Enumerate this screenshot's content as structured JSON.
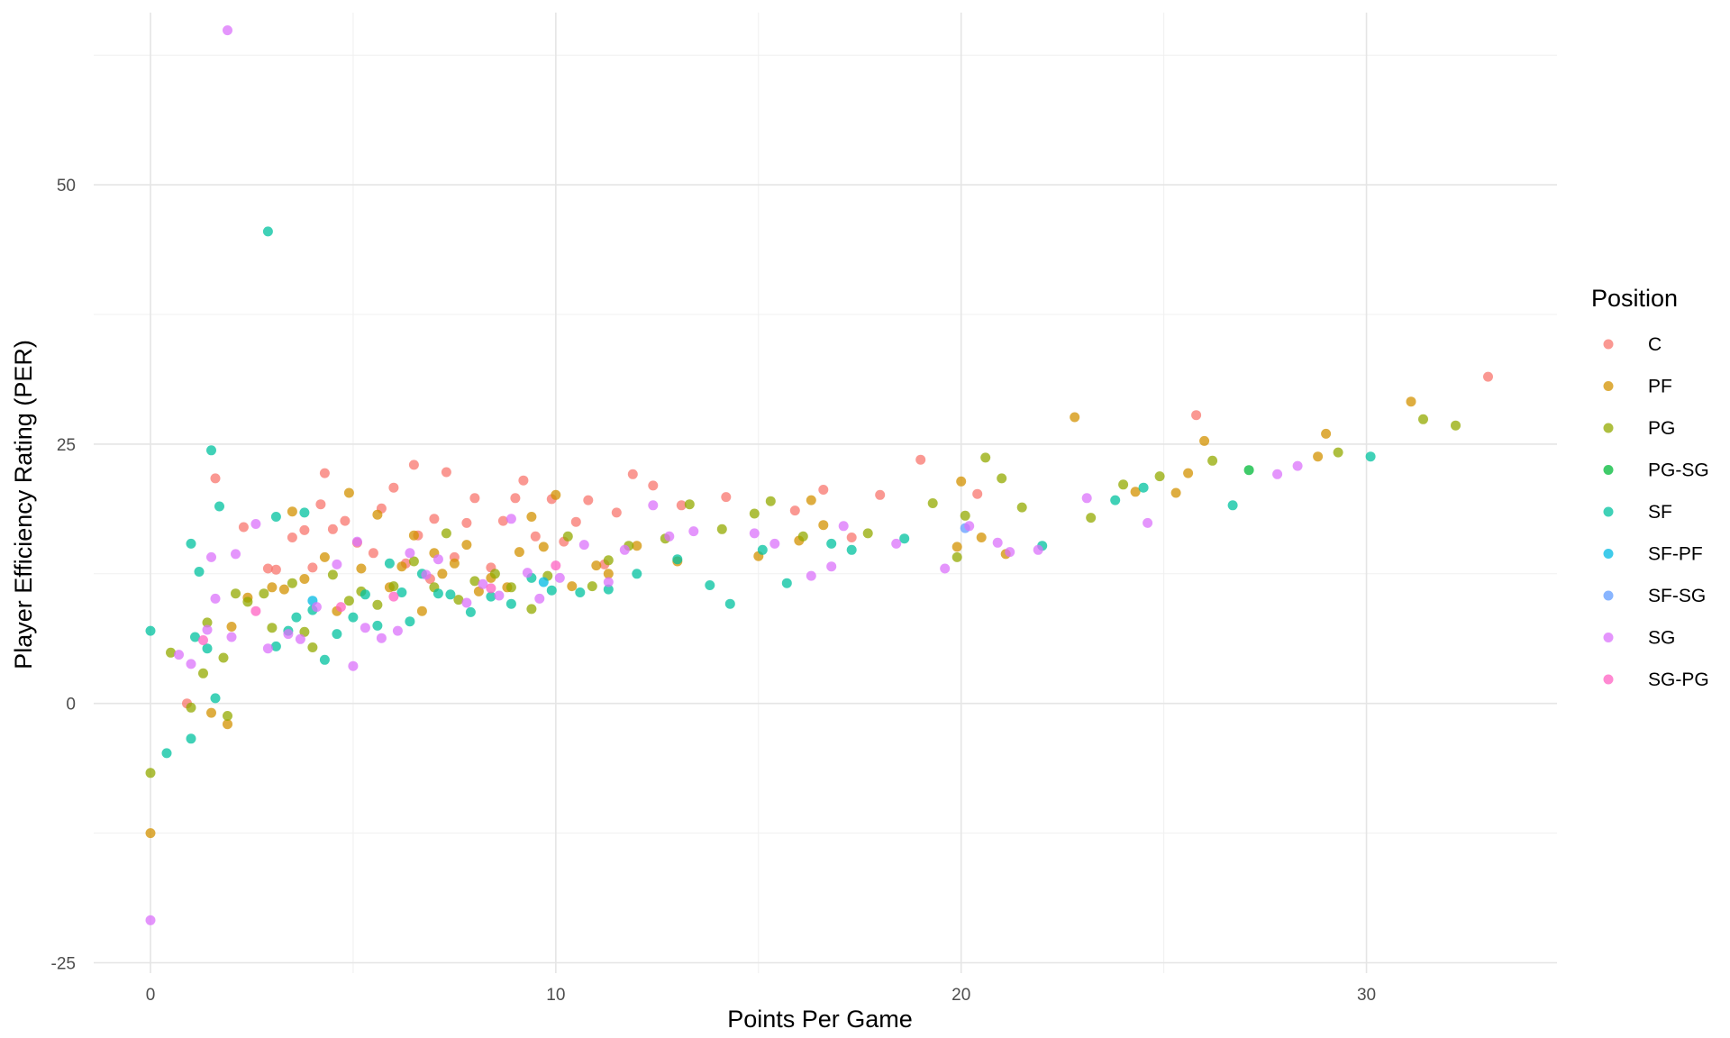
{
  "chart_data": {
    "type": "scatter",
    "xlabel": "Points Per Game",
    "ylabel": "Player Efficiency Rating (PER)",
    "xlim": [
      -1.4,
      34.7
    ],
    "ylim": [
      -26,
      66.6
    ],
    "x_ticks": [
      0,
      10,
      20,
      30
    ],
    "y_ticks": [
      -25,
      0,
      25,
      50
    ],
    "grid": true,
    "legend": {
      "title": "Position",
      "placement": "right"
    },
    "colors": {
      "C": "#F8766D",
      "PF": "#D39200",
      "PG": "#93AA00",
      "PG-SG": "#00BA38",
      "SF": "#00C19F",
      "SF-PF": "#00B9E3",
      "SF-SG": "#619CFF",
      "SG": "#DB72FB",
      "SG-PG": "#FF61C3"
    },
    "series": [
      {
        "name": "C",
        "points": [
          [
            0.9,
            0
          ],
          [
            1.6,
            21.7
          ],
          [
            2.3,
            17
          ],
          [
            2.9,
            13
          ],
          [
            3.1,
            12.9
          ],
          [
            3.5,
            16
          ],
          [
            3.8,
            16.7
          ],
          [
            4.0,
            13.1
          ],
          [
            4.2,
            19.2
          ],
          [
            4.3,
            22.2
          ],
          [
            4.5,
            16.8
          ],
          [
            4.8,
            17.6
          ],
          [
            5.1,
            15.5
          ],
          [
            5.5,
            14.5
          ],
          [
            5.7,
            18.8
          ],
          [
            6.0,
            20.8
          ],
          [
            6.3,
            13.5
          ],
          [
            6.5,
            23
          ],
          [
            6.6,
            16.2
          ],
          [
            6.9,
            12
          ],
          [
            7.0,
            17.8
          ],
          [
            7.3,
            22.3
          ],
          [
            7.5,
            14.1
          ],
          [
            7.8,
            17.4
          ],
          [
            8.0,
            19.8
          ],
          [
            8.4,
            13.1
          ],
          [
            8.7,
            17.6
          ],
          [
            9.0,
            19.8
          ],
          [
            9.2,
            21.5
          ],
          [
            9.5,
            16.1
          ],
          [
            9.9,
            19.7
          ],
          [
            10.2,
            15.6
          ],
          [
            10.5,
            17.5
          ],
          [
            10.8,
            19.6
          ],
          [
            11.2,
            13.4
          ],
          [
            11.5,
            18.4
          ],
          [
            11.9,
            22.1
          ],
          [
            12.4,
            21
          ],
          [
            13.1,
            19.1
          ],
          [
            14.2,
            19.9
          ],
          [
            15.9,
            18.6
          ],
          [
            16.6,
            20.6
          ],
          [
            17.3,
            16
          ],
          [
            18.0,
            20.1
          ],
          [
            19.0,
            23.5
          ],
          [
            20.4,
            20.2
          ],
          [
            25.8,
            27.8
          ],
          [
            33.0,
            31.5
          ]
        ]
      },
      {
        "name": "PF",
        "points": [
          [
            0,
            -12.5
          ],
          [
            1.5,
            -0.9
          ],
          [
            1.9,
            -2
          ],
          [
            2.0,
            7.4
          ],
          [
            2.4,
            10.2
          ],
          [
            3.0,
            11.2
          ],
          [
            3.3,
            11
          ],
          [
            3.5,
            18.5
          ],
          [
            3.8,
            12
          ],
          [
            4.3,
            14.1
          ],
          [
            4.6,
            8.9
          ],
          [
            4.9,
            20.3
          ],
          [
            5.2,
            13
          ],
          [
            5.6,
            18.2
          ],
          [
            5.9,
            11.2
          ],
          [
            6.2,
            13.2
          ],
          [
            6.5,
            16.2
          ],
          [
            6.7,
            8.9
          ],
          [
            7.0,
            14.5
          ],
          [
            7.2,
            12.5
          ],
          [
            7.5,
            13.5
          ],
          [
            7.8,
            15.3
          ],
          [
            8.1,
            10.8
          ],
          [
            8.4,
            12.1
          ],
          [
            8.8,
            11.2
          ],
          [
            9.1,
            14.6
          ],
          [
            9.4,
            18
          ],
          [
            9.7,
            15.1
          ],
          [
            10.0,
            20.1
          ],
          [
            10.4,
            11.3
          ],
          [
            11.0,
            13.3
          ],
          [
            11.3,
            12.5
          ],
          [
            12.0,
            15.2
          ],
          [
            13.0,
            13.7
          ],
          [
            15.0,
            14.2
          ],
          [
            16.0,
            15.7
          ],
          [
            16.3,
            19.6
          ],
          [
            16.6,
            17.2
          ],
          [
            19.9,
            15.1
          ],
          [
            20.0,
            21.4
          ],
          [
            20.5,
            16
          ],
          [
            21.1,
            14.4
          ],
          [
            22.8,
            27.6
          ],
          [
            24.3,
            20.4
          ],
          [
            25.3,
            20.3
          ],
          [
            25.6,
            22.2
          ],
          [
            26.0,
            25.3
          ],
          [
            28.8,
            23.8
          ],
          [
            29.0,
            26
          ],
          [
            31.1,
            29.1
          ]
        ]
      },
      {
        "name": "PG",
        "points": [
          [
            0,
            -6.7
          ],
          [
            0.5,
            4.9
          ],
          [
            1.0,
            -0.4
          ],
          [
            1.3,
            2.9
          ],
          [
            1.4,
            7.8
          ],
          [
            1.8,
            4.4
          ],
          [
            1.9,
            -1.2
          ],
          [
            2.1,
            10.6
          ],
          [
            2.4,
            9.8
          ],
          [
            2.8,
            10.6
          ],
          [
            3.0,
            7.3
          ],
          [
            3.5,
            11.6
          ],
          [
            3.8,
            6.9
          ],
          [
            4.0,
            5.4
          ],
          [
            4.5,
            12.4
          ],
          [
            4.9,
            9.9
          ],
          [
            5.2,
            10.8
          ],
          [
            5.6,
            9.5
          ],
          [
            6.0,
            11.3
          ],
          [
            6.5,
            13.7
          ],
          [
            7.0,
            11.2
          ],
          [
            7.3,
            16.4
          ],
          [
            7.6,
            10
          ],
          [
            8.0,
            11.8
          ],
          [
            8.5,
            12.5
          ],
          [
            8.9,
            11.2
          ],
          [
            9.4,
            9.1
          ],
          [
            9.8,
            12.3
          ],
          [
            10.3,
            16.1
          ],
          [
            10.9,
            11.3
          ],
          [
            11.3,
            13.8
          ],
          [
            11.8,
            15.2
          ],
          [
            12.7,
            15.9
          ],
          [
            13.3,
            19.2
          ],
          [
            14.1,
            16.8
          ],
          [
            14.9,
            18.3
          ],
          [
            15.3,
            19.5
          ],
          [
            16.1,
            16.1
          ],
          [
            17.7,
            16.4
          ],
          [
            19.3,
            19.3
          ],
          [
            19.9,
            14.1
          ],
          [
            20.1,
            18.1
          ],
          [
            20.6,
            23.7
          ],
          [
            21.0,
            21.7
          ],
          [
            21.5,
            18.9
          ],
          [
            23.2,
            17.9
          ],
          [
            24.0,
            21.1
          ],
          [
            24.9,
            21.9
          ],
          [
            26.2,
            23.4
          ],
          [
            29.3,
            24.2
          ],
          [
            31.4,
            27.4
          ],
          [
            32.2,
            26.8
          ]
        ]
      },
      {
        "name": "PG-SG",
        "points": [
          [
            27.1,
            22.5
          ]
        ]
      },
      {
        "name": "SF",
        "points": [
          [
            0,
            7
          ],
          [
            0.4,
            -4.8
          ],
          [
            1.0,
            -3.4
          ],
          [
            1.0,
            15.4
          ],
          [
            1.1,
            6.4
          ],
          [
            1.2,
            12.7
          ],
          [
            1.4,
            5.3
          ],
          [
            1.5,
            24.4
          ],
          [
            1.6,
            0.5
          ],
          [
            1.7,
            19
          ],
          [
            2.9,
            45.5
          ],
          [
            3.1,
            18
          ],
          [
            3.1,
            5.5
          ],
          [
            3.4,
            7
          ],
          [
            3.6,
            8.3
          ],
          [
            3.8,
            18.4
          ],
          [
            4.0,
            9
          ],
          [
            4.3,
            4.2
          ],
          [
            4.6,
            6.7
          ],
          [
            5.0,
            8.3
          ],
          [
            5.3,
            10.5
          ],
          [
            5.6,
            7.5
          ],
          [
            5.9,
            13.5
          ],
          [
            6.2,
            10.7
          ],
          [
            6.4,
            7.9
          ],
          [
            6.7,
            12.5
          ],
          [
            7.1,
            10.6
          ],
          [
            7.4,
            10.5
          ],
          [
            7.9,
            8.8
          ],
          [
            8.4,
            10.3
          ],
          [
            8.9,
            9.6
          ],
          [
            9.4,
            12.1
          ],
          [
            9.9,
            10.9
          ],
          [
            10.6,
            10.7
          ],
          [
            11.3,
            11
          ],
          [
            12.0,
            12.5
          ],
          [
            13.0,
            13.9
          ],
          [
            13.8,
            11.4
          ],
          [
            14.3,
            9.6
          ],
          [
            15.1,
            14.8
          ],
          [
            15.7,
            11.6
          ],
          [
            16.8,
            15.4
          ],
          [
            17.3,
            14.8
          ],
          [
            18.6,
            15.9
          ],
          [
            22.0,
            15.2
          ],
          [
            23.8,
            19.6
          ],
          [
            24.5,
            20.8
          ],
          [
            26.7,
            19.1
          ],
          [
            30.1,
            23.8
          ]
        ]
      },
      {
        "name": "SF-PF",
        "points": [
          [
            4.0,
            9.9
          ],
          [
            9.7,
            11.7
          ]
        ]
      },
      {
        "name": "SF-SG",
        "points": [
          [
            20.1,
            16.9
          ]
        ]
      },
      {
        "name": "SG",
        "points": [
          [
            0,
            -20.9
          ],
          [
            0.7,
            4.7
          ],
          [
            1.0,
            3.8
          ],
          [
            1.4,
            7.1
          ],
          [
            1.5,
            14.1
          ],
          [
            1.6,
            10.1
          ],
          [
            1.9,
            64.9
          ],
          [
            2.0,
            6.4
          ],
          [
            2.1,
            14.4
          ],
          [
            2.6,
            17.3
          ],
          [
            2.9,
            5.3
          ],
          [
            3.4,
            6.7
          ],
          [
            3.7,
            6.2
          ],
          [
            4.1,
            9.3
          ],
          [
            4.6,
            13.4
          ],
          [
            5.0,
            3.6
          ],
          [
            5.1,
            15.6
          ],
          [
            5.3,
            7.3
          ],
          [
            5.7,
            6.3
          ],
          [
            6.1,
            7
          ],
          [
            6.4,
            14.5
          ],
          [
            6.8,
            12.4
          ],
          [
            7.1,
            13.9
          ],
          [
            7.8,
            9.7
          ],
          [
            8.2,
            11.5
          ],
          [
            8.6,
            10.4
          ],
          [
            8.9,
            17.8
          ],
          [
            9.3,
            12.6
          ],
          [
            9.6,
            10.1
          ],
          [
            10.1,
            12.1
          ],
          [
            10.7,
            15.3
          ],
          [
            11.3,
            11.7
          ],
          [
            11.7,
            14.8
          ],
          [
            12.4,
            19.1
          ],
          [
            12.8,
            16.1
          ],
          [
            13.4,
            16.6
          ],
          [
            14.9,
            16.4
          ],
          [
            15.4,
            15.4
          ],
          [
            16.3,
            12.3
          ],
          [
            16.8,
            13.2
          ],
          [
            17.1,
            17.1
          ],
          [
            18.4,
            15.4
          ],
          [
            19.6,
            13
          ],
          [
            20.2,
            17.1
          ],
          [
            20.9,
            15.5
          ],
          [
            21.2,
            14.6
          ],
          [
            21.9,
            14.8
          ],
          [
            23.1,
            19.8
          ],
          [
            24.6,
            17.4
          ],
          [
            27.8,
            22.1
          ],
          [
            28.3,
            22.9
          ]
        ]
      },
      {
        "name": "SG-PG",
        "points": [
          [
            1.3,
            6.1
          ],
          [
            2.6,
            8.9
          ],
          [
            4.7,
            9.3
          ],
          [
            6.0,
            10.3
          ],
          [
            8.4,
            11.1
          ],
          [
            10.0,
            13.3
          ]
        ]
      }
    ]
  }
}
